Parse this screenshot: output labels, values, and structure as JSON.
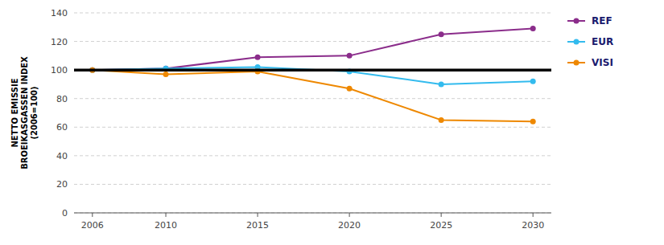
{
  "chart_data": {
    "type": "line",
    "ylabel": "NETTO EMISSIE\nBROEIKASGASSEN INDEX\n(2006=100)",
    "x": [
      2006,
      2010,
      2015,
      2020,
      2025,
      2030
    ],
    "series": [
      {
        "name": "REF",
        "color": "#8B2D8B",
        "values": [
          100,
          101,
          109,
          110,
          125,
          129
        ]
      },
      {
        "name": "EUR",
        "color": "#33BBEE",
        "values": [
          100,
          101,
          102,
          99,
          90,
          92
        ]
      },
      {
        "name": "VISI",
        "color": "#EE8800",
        "values": [
          100,
          97,
          99,
          87,
          65,
          64
        ]
      }
    ],
    "reference_line": 100,
    "xlim": [
      2005,
      2031
    ],
    "xticks": [
      2006,
      2010,
      2015,
      2020,
      2025,
      2030
    ],
    "ylim": [
      0,
      140
    ],
    "yticks": [
      0,
      20,
      40,
      60,
      80,
      100,
      120,
      140
    ],
    "grid": true,
    "legend": "right",
    "marker": "circle"
  }
}
